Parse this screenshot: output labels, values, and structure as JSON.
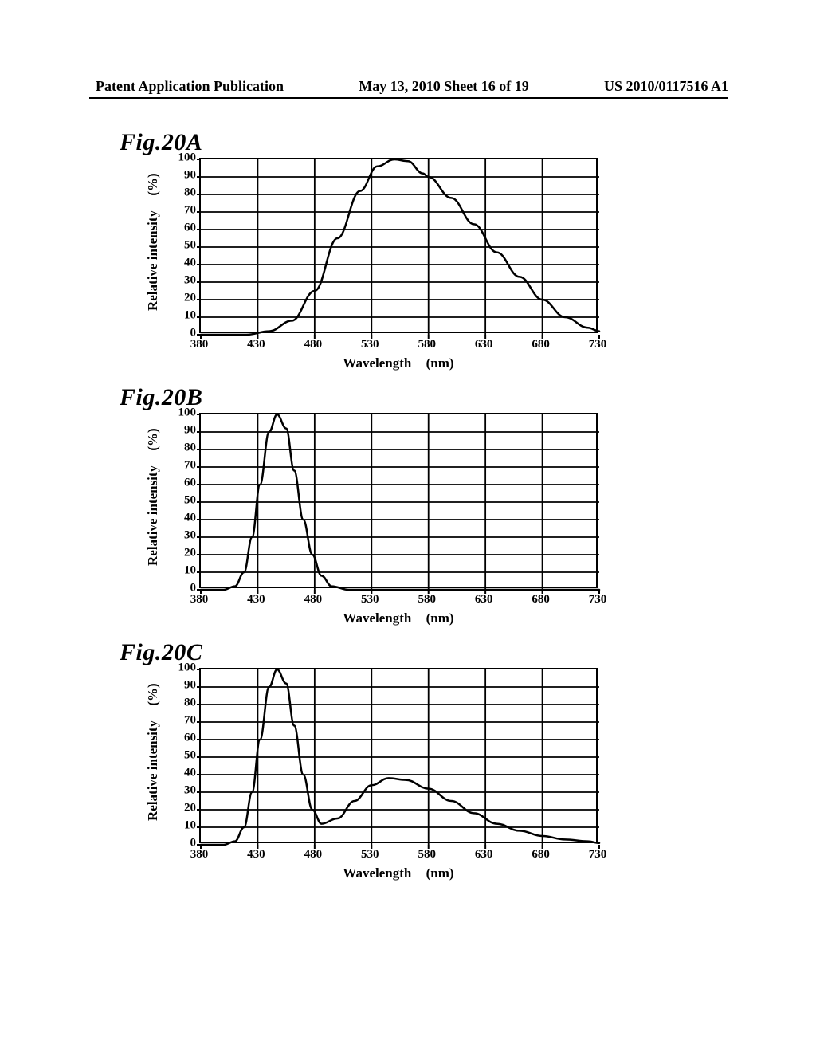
{
  "header": {
    "left": "Patent Application Publication",
    "center": "May 13, 2010  Sheet 16 of 19",
    "right": "US 2010/0117516 A1"
  },
  "axes": {
    "xlabel": "Wavelength",
    "xlabel_unit": "(nm)",
    "ylabel": "Relative intensity",
    "ylabel_unit": "(%)",
    "xmin": 380,
    "xmax": 730,
    "xticks": [
      380,
      430,
      480,
      530,
      580,
      630,
      680,
      730
    ],
    "ymin": 0,
    "ymax": 100,
    "yticks": [
      0,
      10,
      20,
      30,
      40,
      50,
      60,
      70,
      80,
      90,
      100
    ],
    "xlim": [
      380,
      730
    ],
    "ylim": [
      0,
      100
    ],
    "grid_color": "#000000",
    "border_color": "#000000",
    "background_color": "#ffffff",
    "line_color": "#000000",
    "line_width": 2.5,
    "font_family": "serif",
    "tick_fontsize": 15,
    "label_fontsize": 17,
    "figlabel_fontsize": 30
  },
  "charts": [
    {
      "label": "Fig.20A",
      "type": "line",
      "series": [
        {
          "x": 380,
          "y": 0
        },
        {
          "x": 420,
          "y": 0
        },
        {
          "x": 440,
          "y": 2
        },
        {
          "x": 460,
          "y": 8
        },
        {
          "x": 480,
          "y": 25
        },
        {
          "x": 500,
          "y": 55
        },
        {
          "x": 520,
          "y": 82
        },
        {
          "x": 535,
          "y": 96
        },
        {
          "x": 550,
          "y": 100
        },
        {
          "x": 562,
          "y": 99
        },
        {
          "x": 575,
          "y": 92
        },
        {
          "x": 580,
          "y": 90
        },
        {
          "x": 600,
          "y": 78
        },
        {
          "x": 620,
          "y": 63
        },
        {
          "x": 640,
          "y": 47
        },
        {
          "x": 660,
          "y": 33
        },
        {
          "x": 680,
          "y": 20
        },
        {
          "x": 700,
          "y": 10
        },
        {
          "x": 720,
          "y": 4
        },
        {
          "x": 730,
          "y": 2
        }
      ]
    },
    {
      "label": "Fig.20B",
      "type": "line",
      "series": [
        {
          "x": 380,
          "y": 0
        },
        {
          "x": 400,
          "y": 0
        },
        {
          "x": 410,
          "y": 2
        },
        {
          "x": 418,
          "y": 10
        },
        {
          "x": 425,
          "y": 30
        },
        {
          "x": 432,
          "y": 60
        },
        {
          "x": 440,
          "y": 90
        },
        {
          "x": 447,
          "y": 100
        },
        {
          "x": 455,
          "y": 92
        },
        {
          "x": 462,
          "y": 68
        },
        {
          "x": 470,
          "y": 40
        },
        {
          "x": 478,
          "y": 20
        },
        {
          "x": 486,
          "y": 8
        },
        {
          "x": 495,
          "y": 2
        },
        {
          "x": 510,
          "y": 0
        },
        {
          "x": 730,
          "y": 0
        }
      ]
    },
    {
      "label": "Fig.20C",
      "type": "line",
      "series": [
        {
          "x": 380,
          "y": 0
        },
        {
          "x": 400,
          "y": 0
        },
        {
          "x": 410,
          "y": 2
        },
        {
          "x": 418,
          "y": 10
        },
        {
          "x": 425,
          "y": 30
        },
        {
          "x": 432,
          "y": 60
        },
        {
          "x": 440,
          "y": 90
        },
        {
          "x": 447,
          "y": 100
        },
        {
          "x": 455,
          "y": 92
        },
        {
          "x": 462,
          "y": 68
        },
        {
          "x": 470,
          "y": 40
        },
        {
          "x": 478,
          "y": 20
        },
        {
          "x": 486,
          "y": 12
        },
        {
          "x": 500,
          "y": 15
        },
        {
          "x": 515,
          "y": 25
        },
        {
          "x": 530,
          "y": 34
        },
        {
          "x": 545,
          "y": 38
        },
        {
          "x": 560,
          "y": 37
        },
        {
          "x": 580,
          "y": 32
        },
        {
          "x": 600,
          "y": 25
        },
        {
          "x": 620,
          "y": 18
        },
        {
          "x": 640,
          "y": 12
        },
        {
          "x": 660,
          "y": 8
        },
        {
          "x": 680,
          "y": 5
        },
        {
          "x": 700,
          "y": 3
        },
        {
          "x": 720,
          "y": 2
        },
        {
          "x": 730,
          "y": 1
        }
      ]
    }
  ]
}
